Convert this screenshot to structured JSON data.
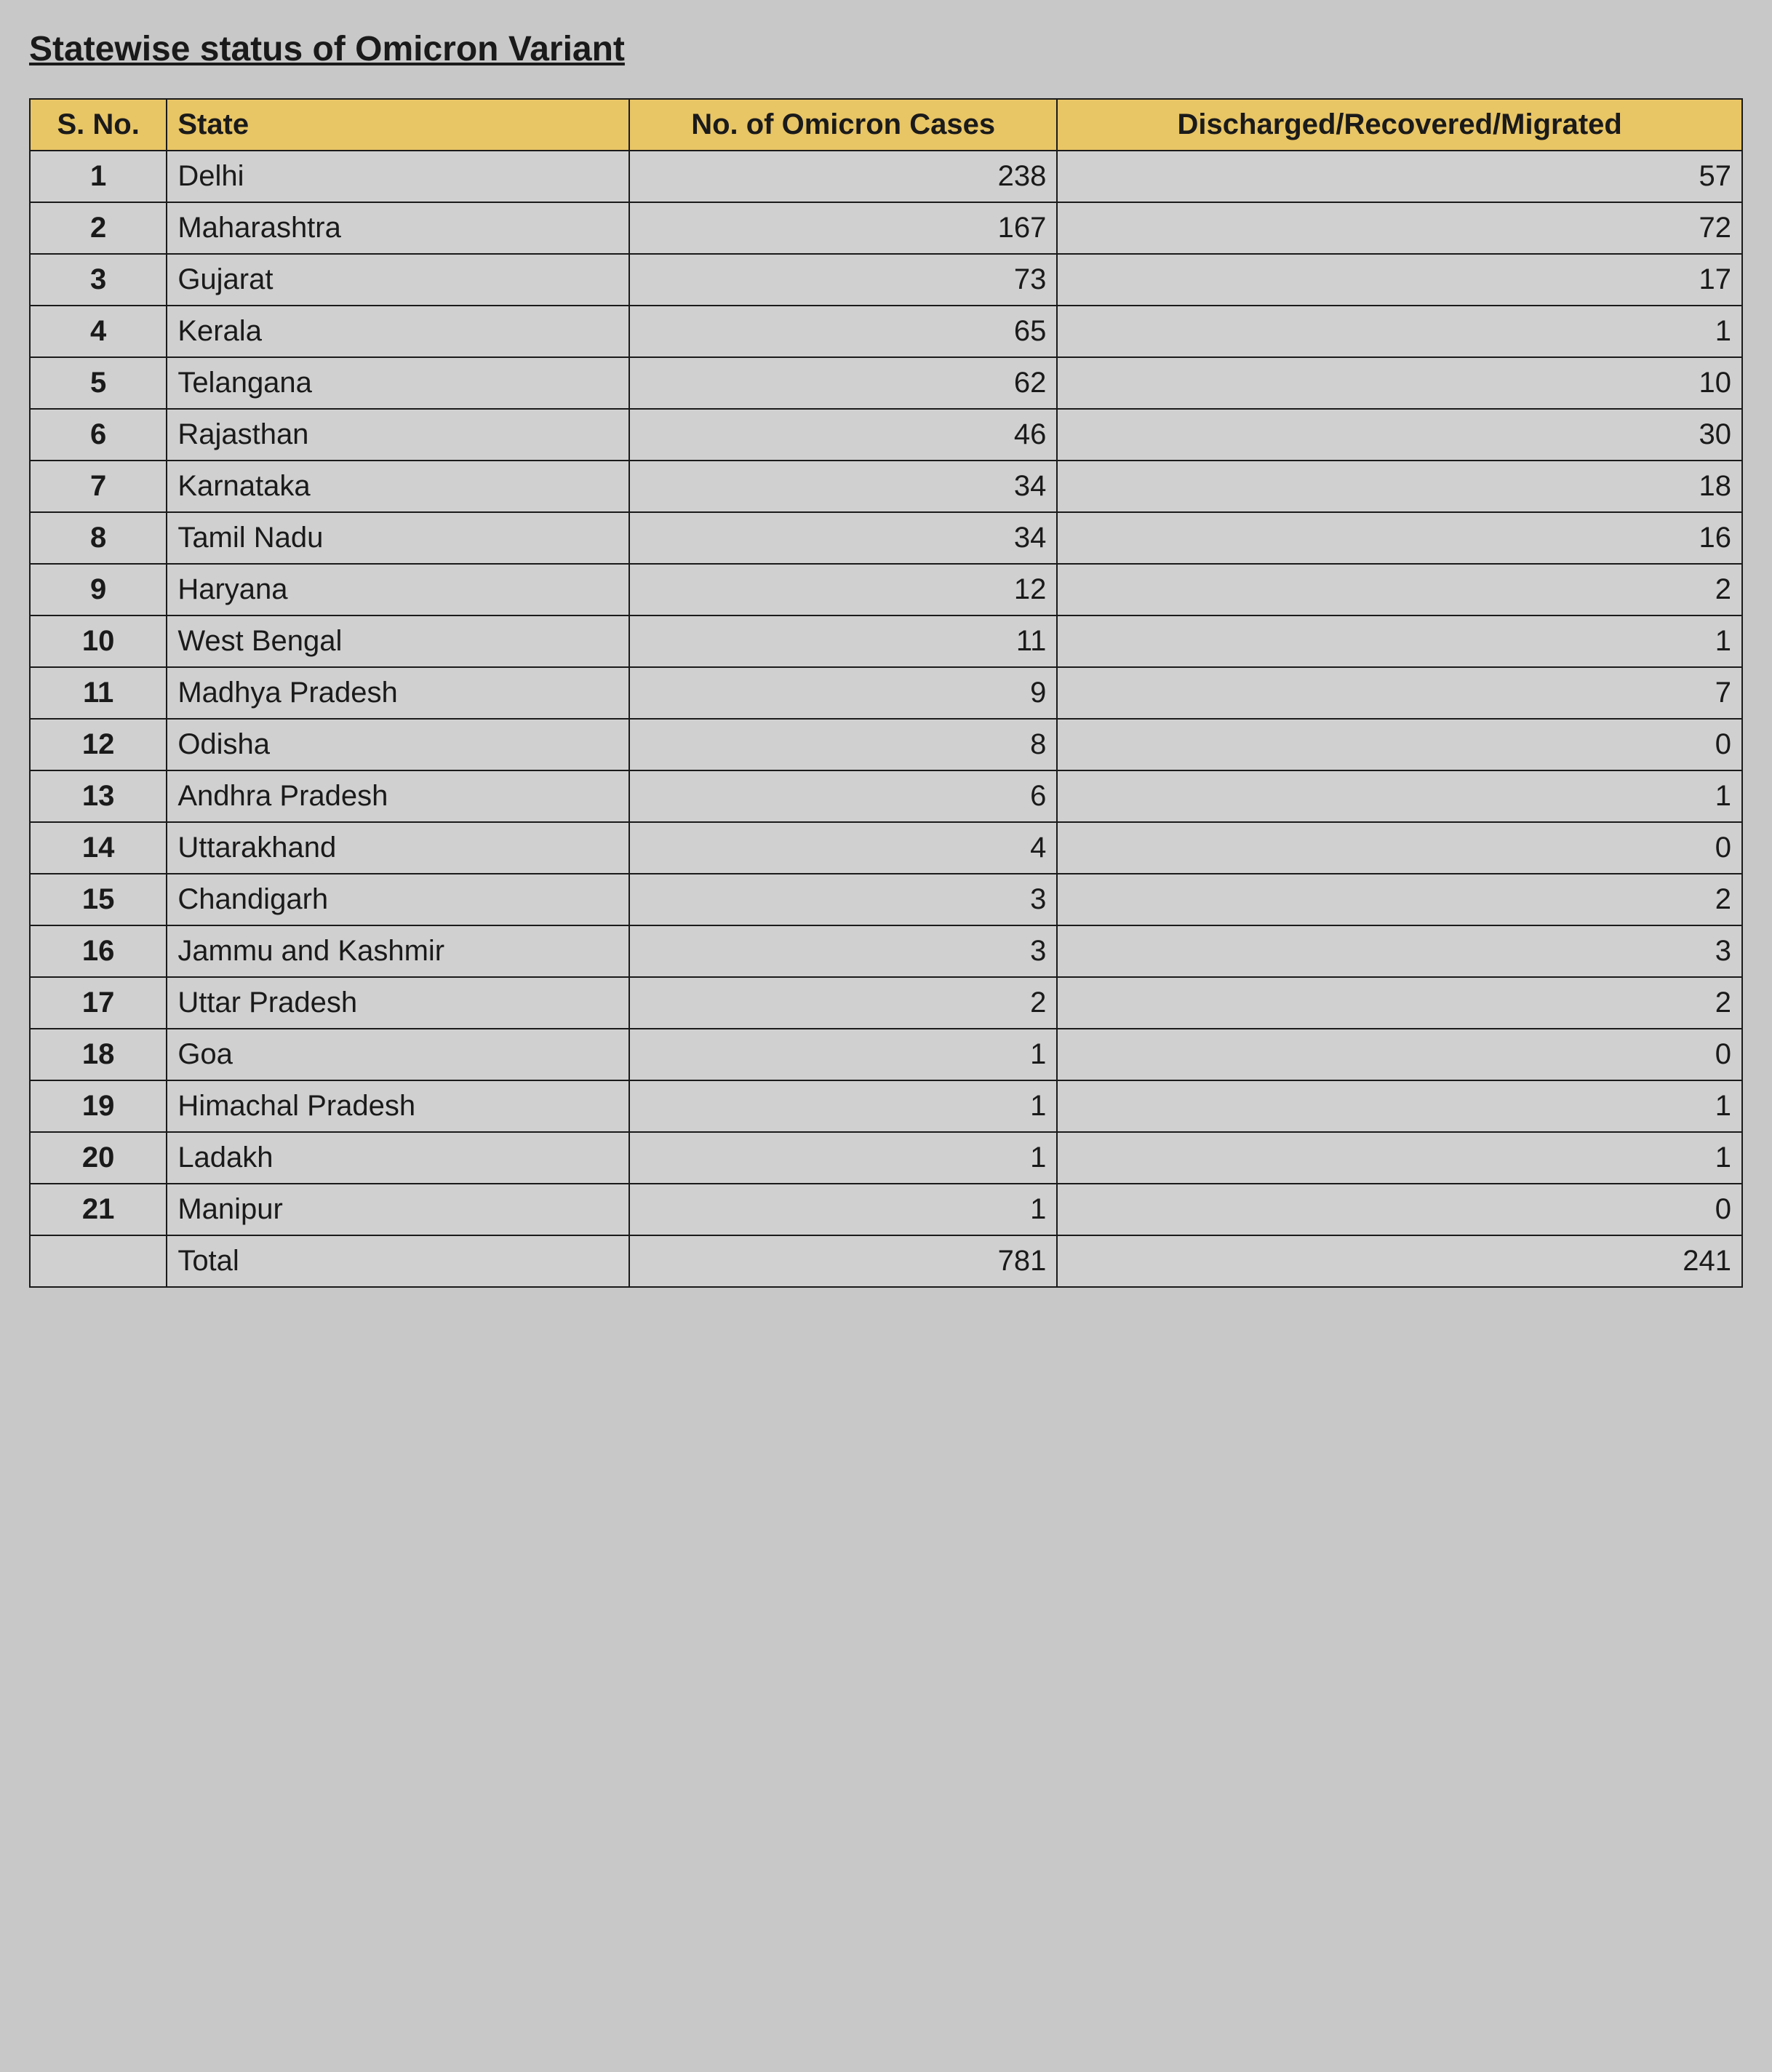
{
  "title": "Statewise status of Omicron Variant",
  "table": {
    "columns": [
      "S. No.",
      "State",
      "No. of Omicron Cases",
      "Discharged/Recovered/Migrated"
    ],
    "header_bg": "#e8c565",
    "border_color": "#1a1a1a",
    "cell_bg": "#d0d0d0",
    "font_size": 40,
    "rows": [
      {
        "sno": "1",
        "state": "Delhi",
        "cases": "238",
        "recovered": "57"
      },
      {
        "sno": "2",
        "state": "Maharashtra",
        "cases": "167",
        "recovered": "72"
      },
      {
        "sno": "3",
        "state": "Gujarat",
        "cases": "73",
        "recovered": "17"
      },
      {
        "sno": "4",
        "state": "Kerala",
        "cases": "65",
        "recovered": "1"
      },
      {
        "sno": "5",
        "state": "Telangana",
        "cases": "62",
        "recovered": "10"
      },
      {
        "sno": "6",
        "state": "Rajasthan",
        "cases": "46",
        "recovered": "30"
      },
      {
        "sno": "7",
        "state": "Karnataka",
        "cases": "34",
        "recovered": "18"
      },
      {
        "sno": "8",
        "state": "Tamil Nadu",
        "cases": "34",
        "recovered": "16"
      },
      {
        "sno": "9",
        "state": "Haryana",
        "cases": "12",
        "recovered": "2"
      },
      {
        "sno": "10",
        "state": "West Bengal",
        "cases": "11",
        "recovered": "1"
      },
      {
        "sno": "11",
        "state": "Madhya Pradesh",
        "cases": "9",
        "recovered": "7"
      },
      {
        "sno": "12",
        "state": "Odisha",
        "cases": "8",
        "recovered": "0"
      },
      {
        "sno": "13",
        "state": "Andhra Pradesh",
        "cases": "6",
        "recovered": "1"
      },
      {
        "sno": "14",
        "state": "Uttarakhand",
        "cases": "4",
        "recovered": "0"
      },
      {
        "sno": "15",
        "state": "Chandigarh",
        "cases": "3",
        "recovered": "2"
      },
      {
        "sno": "16",
        "state": "Jammu and Kashmir",
        "cases": "3",
        "recovered": "3"
      },
      {
        "sno": "17",
        "state": "Uttar Pradesh",
        "cases": "2",
        "recovered": "2"
      },
      {
        "sno": "18",
        "state": "Goa",
        "cases": "1",
        "recovered": "0"
      },
      {
        "sno": "19",
        "state": "Himachal Pradesh",
        "cases": "1",
        "recovered": "1"
      },
      {
        "sno": "20",
        "state": "Ladakh",
        "cases": "1",
        "recovered": "1"
      },
      {
        "sno": "21",
        "state": "Manipur",
        "cases": "1",
        "recovered": "0"
      }
    ],
    "total": {
      "label": "Total",
      "cases": "781",
      "recovered": "241"
    }
  }
}
